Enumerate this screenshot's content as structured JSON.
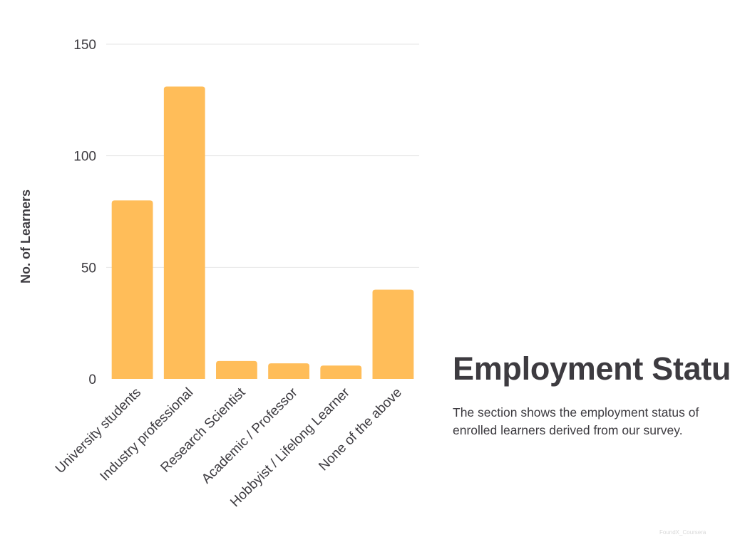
{
  "chart_data": {
    "type": "bar",
    "categories": [
      "University students",
      "Industry professional",
      "Research Scientist",
      "Academic / Professor",
      "Hobbyist / Lifelong Learner",
      "None of the above"
    ],
    "values": [
      80,
      131,
      8,
      7,
      6,
      40
    ],
    "ylabel": "No. of Learners",
    "xlabel": "",
    "ylim": [
      0,
      150
    ],
    "yticks": [
      0,
      50,
      100,
      150
    ],
    "grid": true,
    "bar_color": "#FFBD59"
  },
  "side": {
    "title": "Employment Status",
    "description": "The section shows the employment status of enrolled learners derived from our survey."
  },
  "watermark": "FoundX_Coursera"
}
